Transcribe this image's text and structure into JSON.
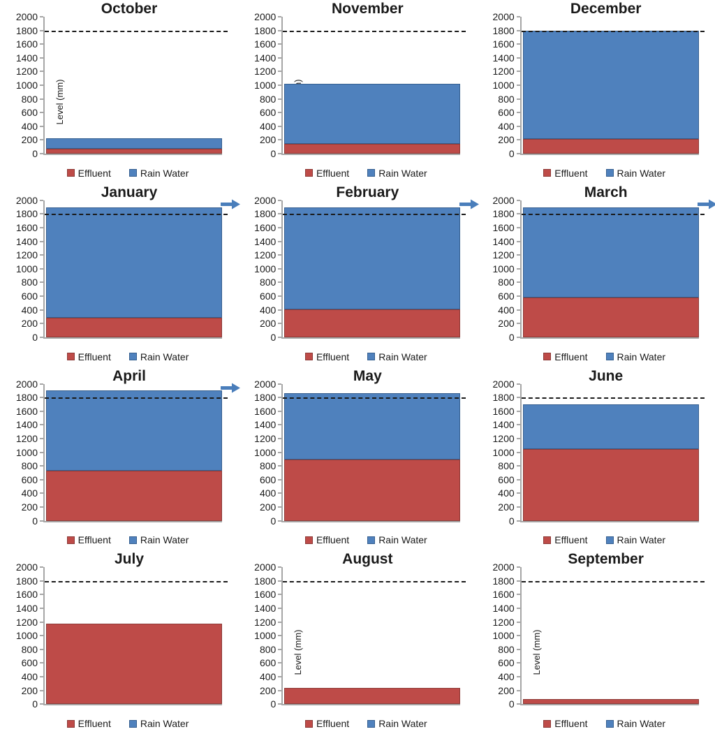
{
  "figure_title": "",
  "chart_data": {
    "type": "bar",
    "description": "Twelve stacked-bar monthly panels of water level",
    "ylabel": "Level (mm)",
    "ylim": [
      0,
      2000
    ],
    "ytick_step": 200,
    "threshold_line": 1800,
    "legend_position": "bottom",
    "series_names": [
      "Effluent",
      "Rain Water"
    ],
    "subplots": [
      {
        "title": "October",
        "effluent": 75,
        "rain_water": 145,
        "total": 220,
        "overflow_arrow": false
      },
      {
        "title": "November",
        "effluent": 140,
        "rain_water": 880,
        "total": 1020,
        "overflow_arrow": false
      },
      {
        "title": "December",
        "effluent": 210,
        "rain_water": 1590,
        "total": 1800,
        "overflow_arrow": false
      },
      {
        "title": "January",
        "effluent": 280,
        "rain_water": 1620,
        "total": 1900,
        "overflow_arrow": true
      },
      {
        "title": "February",
        "effluent": 410,
        "rain_water": 1490,
        "total": 1900,
        "overflow_arrow": true
      },
      {
        "title": "March",
        "effluent": 575,
        "rain_water": 1325,
        "total": 1900,
        "overflow_arrow": true
      },
      {
        "title": "April",
        "effluent": 730,
        "rain_water": 1170,
        "total": 1900,
        "overflow_arrow": true
      },
      {
        "title": "May",
        "effluent": 895,
        "rain_water": 965,
        "total": 1860,
        "overflow_arrow": false
      },
      {
        "title": "June",
        "effluent": 1050,
        "rain_water": 650,
        "total": 1700,
        "overflow_arrow": false
      },
      {
        "title": "July",
        "effluent": 1175,
        "rain_water": 0,
        "total": 1175,
        "overflow_arrow": false
      },
      {
        "title": "August",
        "effluent": 240,
        "rain_water": 0,
        "total": 240,
        "overflow_arrow": false
      },
      {
        "title": "September",
        "effluent": 70,
        "rain_water": 0,
        "total": 70,
        "overflow_arrow": false
      }
    ]
  },
  "legend": {
    "items": [
      {
        "label": "Effluent",
        "color": "#BE4B48",
        "border": "#8C3A37"
      },
      {
        "label": "Rain Water",
        "color": "#4F81BD",
        "border": "#365F8F"
      }
    ]
  },
  "colors": {
    "effluent_fill": "#BE4B48",
    "effluent_border": "#8C3A37",
    "rain_fill": "#4F81BD",
    "rain_border": "#365F8F",
    "threshold_line": "#1a1a1a",
    "axis": "#a6a6a6",
    "arrow": "#4A7EBB",
    "text": "#1a1a1a"
  }
}
